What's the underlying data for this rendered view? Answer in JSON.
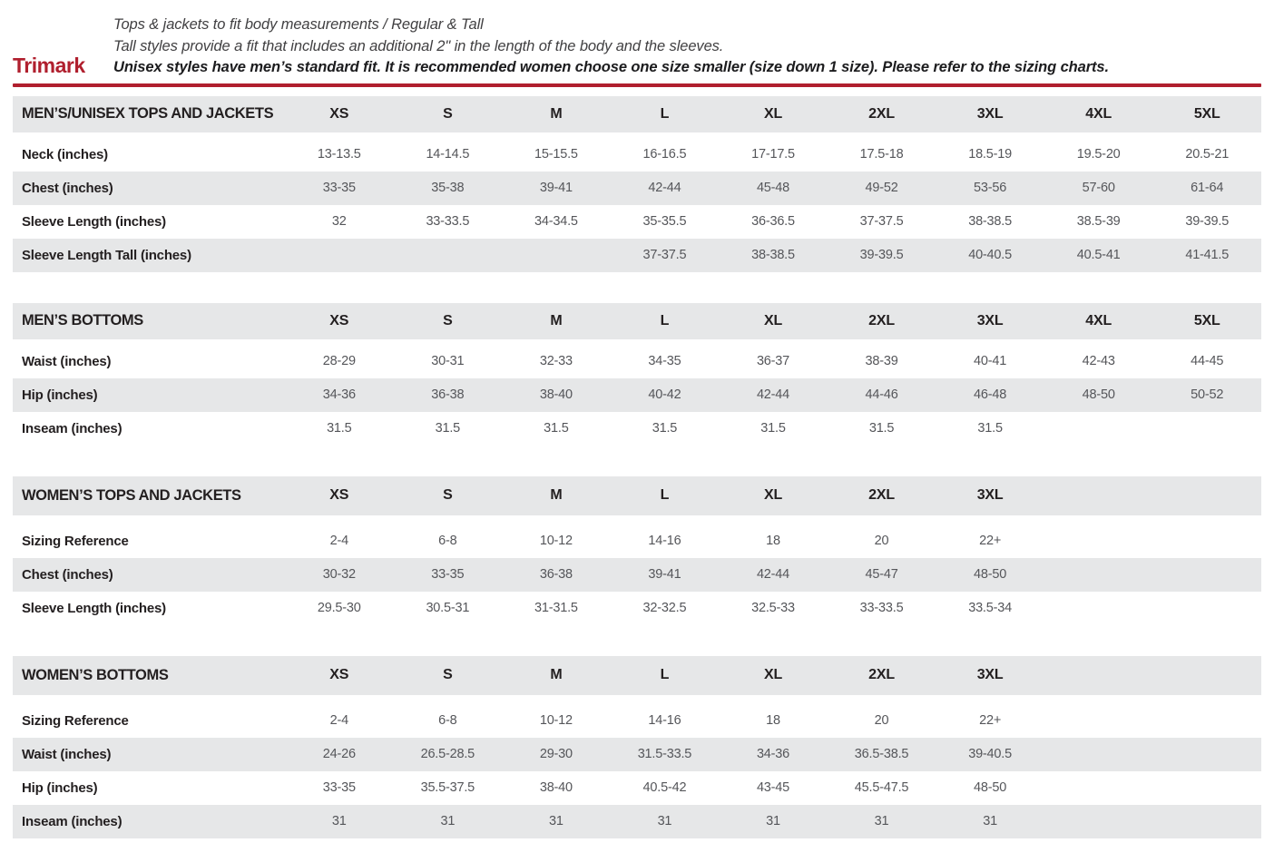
{
  "header": {
    "brand": "Trimark",
    "line1": "Tops & jackets to fit body measurements / Regular & Tall",
    "line2": "Tall styles provide a fit that includes an additional 2\" in the length of the body and the sleeves.",
    "line3": "Unisex styles have men’s standard fit. It is recommended women choose one size smaller (size down 1 size).  Please refer to the sizing charts."
  },
  "colors": {
    "accent_red": "#b01f2e",
    "row_gray": "#e6e7e8",
    "value_text": "#55565a",
    "heading_text": "#231f20"
  },
  "grid": {
    "size_column_count": 9
  },
  "tables": [
    {
      "id": "mens-unisex-tops-and-jackets",
      "title": "MEN’S/UNISEX TOPS AND JACKETS",
      "gapped": false,
      "columns": [
        "XS",
        "S",
        "M",
        "L",
        "XL",
        "2XL",
        "3XL",
        "4XL",
        "5XL"
      ],
      "rows": [
        {
          "label": "Neck (inches)",
          "values": [
            "13-13.5",
            "14-14.5",
            "15-15.5",
            "16-16.5",
            "17-17.5",
            "17.5-18",
            "18.5-19",
            "19.5-20",
            "20.5-21"
          ]
        },
        {
          "label": "Chest (inches)",
          "values": [
            "33-35",
            "35-38",
            "39-41",
            "42-44",
            "45-48",
            "49-52",
            "53-56",
            "57-60",
            "61-64"
          ]
        },
        {
          "label": "Sleeve Length (inches)",
          "values": [
            "32",
            "33-33.5",
            "34-34.5",
            "35-35.5",
            "36-36.5",
            "37-37.5",
            "38-38.5",
            "38.5-39",
            "39-39.5"
          ]
        },
        {
          "label": "Sleeve Length Tall (inches)",
          "values": [
            "",
            "",
            "",
            "37-37.5",
            "38-38.5",
            "39-39.5",
            "40-40.5",
            "40.5-41",
            "41-41.5"
          ]
        }
      ]
    },
    {
      "id": "mens-bottoms",
      "title": "MEN’S BOTTOMS",
      "gapped": false,
      "columns": [
        "XS",
        "S",
        "M",
        "L",
        "XL",
        "2XL",
        "3XL",
        "4XL",
        "5XL"
      ],
      "rows": [
        {
          "label": "Waist (inches)",
          "values": [
            "28-29",
            "30-31",
            "32-33",
            "34-35",
            "36-37",
            "38-39",
            "40-41",
            "42-43",
            "44-45"
          ]
        },
        {
          "label": "Hip (inches)",
          "values": [
            "34-36",
            "36-38",
            "38-40",
            "40-42",
            "42-44",
            "44-46",
            "46-48",
            "48-50",
            "50-52"
          ]
        },
        {
          "label": "Inseam (inches)",
          "values": [
            "31.5",
            "31.5",
            "31.5",
            "31.5",
            "31.5",
            "31.5",
            "31.5",
            "",
            ""
          ]
        }
      ]
    },
    {
      "id": "womens-tops-and-jackets",
      "title": "WOMEN’S TOPS AND JACKETS",
      "gapped": true,
      "columns": [
        "XS",
        "S",
        "M",
        "L",
        "XL",
        "2XL",
        "3XL"
      ],
      "rows": [
        {
          "label": "Sizing Reference",
          "values": [
            "2-4",
            "6-8",
            "10-12",
            "14-16",
            "18",
            "20",
            "22+"
          ]
        },
        {
          "label": "Chest (inches)",
          "values": [
            "30-32",
            "33-35",
            "36-38",
            "39-41",
            "42-44",
            "45-47",
            "48-50"
          ]
        },
        {
          "label": "Sleeve Length (inches)",
          "values": [
            "29.5-30",
            "30.5-31",
            "31-31.5",
            "32-32.5",
            "32.5-33",
            "33-33.5",
            "33.5-34"
          ]
        }
      ]
    },
    {
      "id": "womens-bottoms",
      "title": "WOMEN’S BOTTOMS",
      "gapped": true,
      "columns": [
        "XS",
        "S",
        "M",
        "L",
        "XL",
        "2XL",
        "3XL"
      ],
      "rows": [
        {
          "label": "Sizing Reference",
          "values": [
            "2-4",
            "6-8",
            "10-12",
            "14-16",
            "18",
            "20",
            "22+"
          ]
        },
        {
          "label": "Waist (inches)",
          "values": [
            "24-26",
            "26.5-28.5",
            "29-30",
            "31.5-33.5",
            "34-36",
            "36.5-38.5",
            "39-40.5"
          ]
        },
        {
          "label": "Hip (inches)",
          "values": [
            "33-35",
            "35.5-37.5",
            "38-40",
            "40.5-42",
            "43-45",
            "45.5-47.5",
            "48-50"
          ]
        },
        {
          "label": "Inseam (inches)",
          "values": [
            "31",
            "31",
            "31",
            "31",
            "31",
            "31",
            "31"
          ]
        }
      ]
    }
  ]
}
